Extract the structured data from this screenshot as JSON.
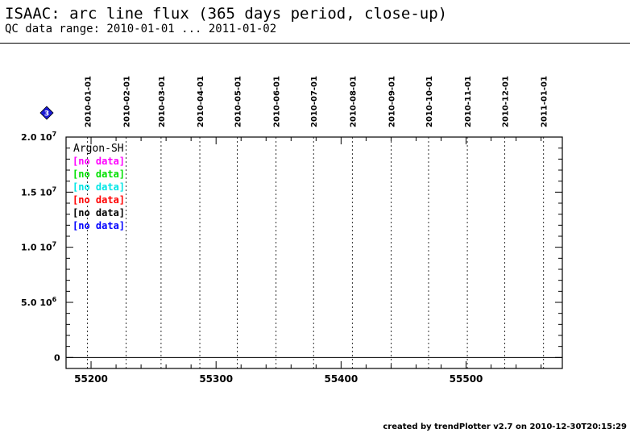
{
  "header": {
    "title": "ISAAC: arc line flux (365 days period, close-up)",
    "subtitle": "QC data range: 2010-01-01 ... 2011-01-02"
  },
  "badge": {
    "label": "3",
    "color": "#1a1ad6"
  },
  "chart_data": {
    "type": "scatter",
    "x_axis_unit": "MJD",
    "xlim": [
      55180,
      55577
    ],
    "ylim": [
      -1000000,
      20000000
    ],
    "x_ticks": [
      55200,
      55300,
      55400,
      55500
    ],
    "x_tick_labels": [
      "55200",
      "55300",
      "55400",
      "55500"
    ],
    "x_minor_step": 20,
    "y_ticks": [
      0,
      5000000,
      10000000,
      15000000,
      20000000
    ],
    "y_tick_labels": [
      {
        "mantissa": "0",
        "exp": ""
      },
      {
        "mantissa": "5.0 10",
        "exp": "6"
      },
      {
        "mantissa": "1.0 10",
        "exp": "7"
      },
      {
        "mantissa": "1.5 10",
        "exp": "7"
      },
      {
        "mantissa": "2.0 10",
        "exp": "7"
      }
    ],
    "y_minor_step": 1000000,
    "zero_line": true,
    "month_markers": [
      {
        "label": "2010-01-01",
        "x": 55197
      },
      {
        "label": "2010-02-01",
        "x": 55228
      },
      {
        "label": "2010-03-01",
        "x": 55256
      },
      {
        "label": "2010-04-01",
        "x": 55287
      },
      {
        "label": "2010-05-01",
        "x": 55317
      },
      {
        "label": "2010-06-01",
        "x": 55348
      },
      {
        "label": "2010-07-01",
        "x": 55378
      },
      {
        "label": "2010-08-01",
        "x": 55409
      },
      {
        "label": "2010-09-01",
        "x": 55440
      },
      {
        "label": "2010-10-01",
        "x": 55470
      },
      {
        "label": "2010-11-01",
        "x": 55501
      },
      {
        "label": "2010-12-01",
        "x": 55531
      },
      {
        "label": "2011-01-01",
        "x": 55562
      }
    ],
    "legend_placement": "top-left",
    "legend_title": "Argon-SH",
    "series": [
      {
        "label": "[no data]",
        "color": "#ff00ff",
        "values": []
      },
      {
        "label": "[no data]",
        "color": "#00e000",
        "values": []
      },
      {
        "label": "[no data]",
        "color": "#00e5e5",
        "values": []
      },
      {
        "label": "[no data]",
        "color": "#ff0000",
        "values": []
      },
      {
        "label": "[no data]",
        "color": "#000000",
        "values": []
      },
      {
        "label": "[no data]",
        "color": "#0000ff",
        "values": []
      }
    ]
  },
  "footer": {
    "credit": "created by trendPlotter v2.7 on 2010-12-30T20:15:29"
  }
}
